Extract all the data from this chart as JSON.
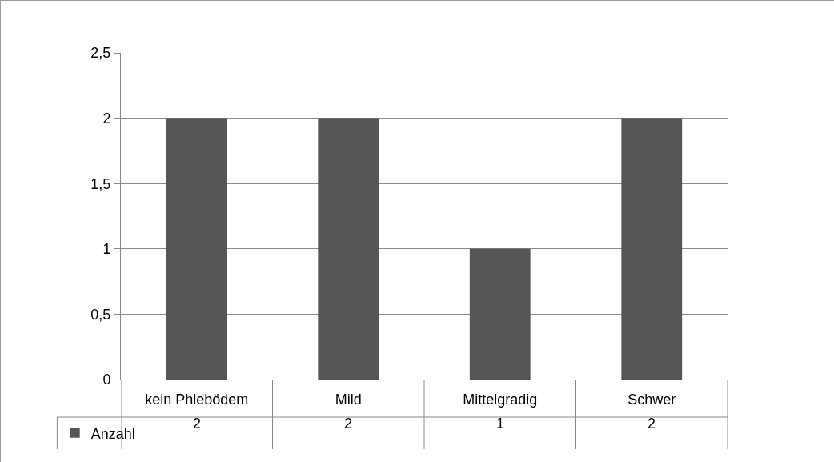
{
  "chart_data": {
    "type": "bar",
    "categories": [
      "kein Phlebödem",
      "Mild",
      "Mittelgradig",
      "Schwer"
    ],
    "series": [
      {
        "name": "Anzahl",
        "color": "#555555",
        "values": [
          2,
          2,
          1,
          2
        ]
      }
    ],
    "ylim": [
      0,
      2.5
    ],
    "yticks": [
      0,
      {
        "value": 0.5,
        "label": "0,5"
      },
      1,
      {
        "value": 1.5,
        "label": "1,5"
      },
      2,
      {
        "value": 2.5,
        "label": "2,5"
      }
    ],
    "grid": "y",
    "legend": "bottom left",
    "data_labels": true
  }
}
